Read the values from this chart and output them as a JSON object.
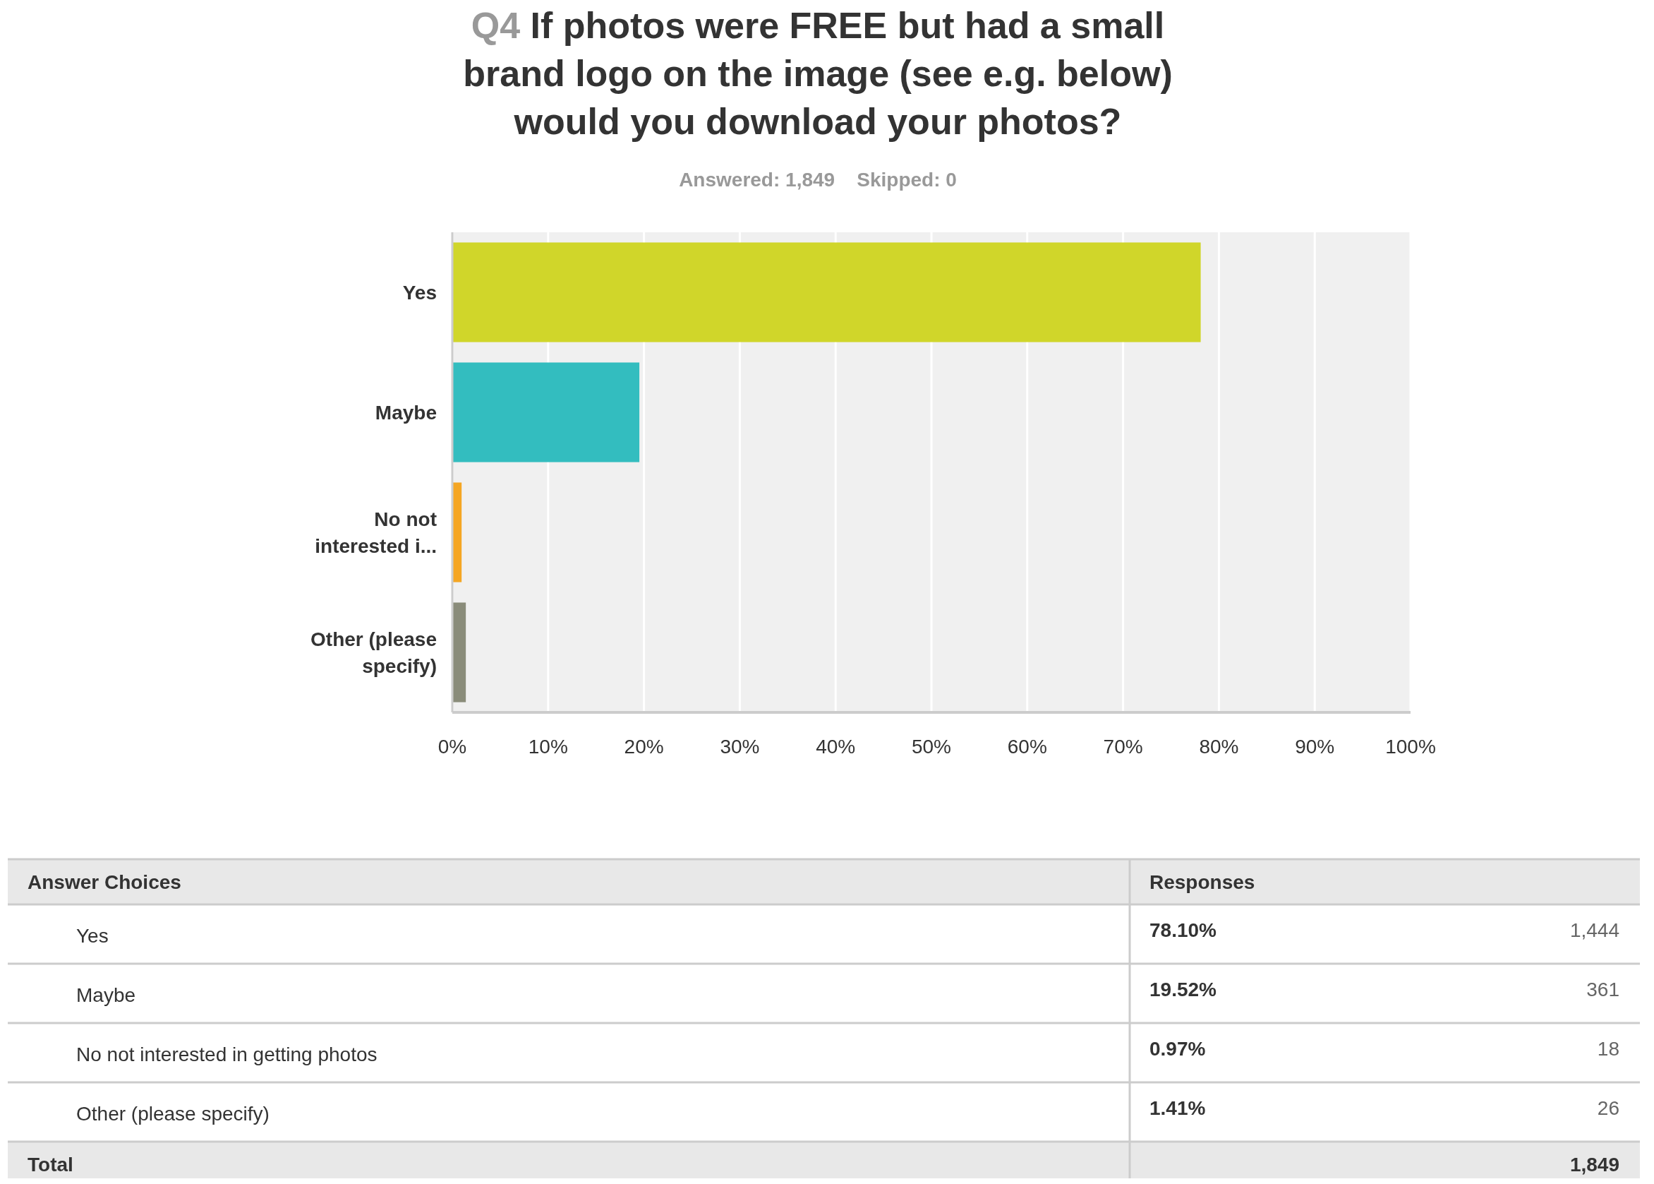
{
  "chart_data": {
    "type": "bar",
    "orientation": "horizontal",
    "title": "Q4 If photos were FREE but had a small brand logo on the image (see e.g. below) would you download your photos?",
    "subtitle": "Answered: 1,849    Skipped: 0",
    "categories": [
      "Yes",
      "Maybe",
      "No not interested i...",
      "Other (please specify)"
    ],
    "values": [
      78.1,
      19.52,
      0.97,
      1.41
    ],
    "colors": [
      "#d0d62a",
      "#33bdbf",
      "#f5a623",
      "#8a8c7a"
    ],
    "xlim": [
      0,
      100
    ],
    "xticks": [
      {
        "value": 0,
        "label": "0%"
      },
      {
        "value": 10,
        "label": "10%"
      },
      {
        "value": 20,
        "label": "20%"
      },
      {
        "value": 30,
        "label": "30%"
      },
      {
        "value": 40,
        "label": "40%"
      },
      {
        "value": 50,
        "label": "50%"
      },
      {
        "value": 60,
        "label": "60%"
      },
      {
        "value": 70,
        "label": "70%"
      },
      {
        "value": 80,
        "label": "80%"
      },
      {
        "value": 90,
        "label": "90%"
      },
      {
        "value": 100,
        "label": "100%"
      }
    ],
    "grid": "x",
    "annotations": [
      "Answer Choices",
      "Responses",
      "Yes",
      "78.10%",
      "1,444",
      "Maybe",
      "19.52%",
      "361",
      "No not interested in getting photos",
      "0.97%",
      "18",
      "Other (please specify)",
      "1.41%",
      "26",
      "Total",
      "1,849"
    ]
  }
}
